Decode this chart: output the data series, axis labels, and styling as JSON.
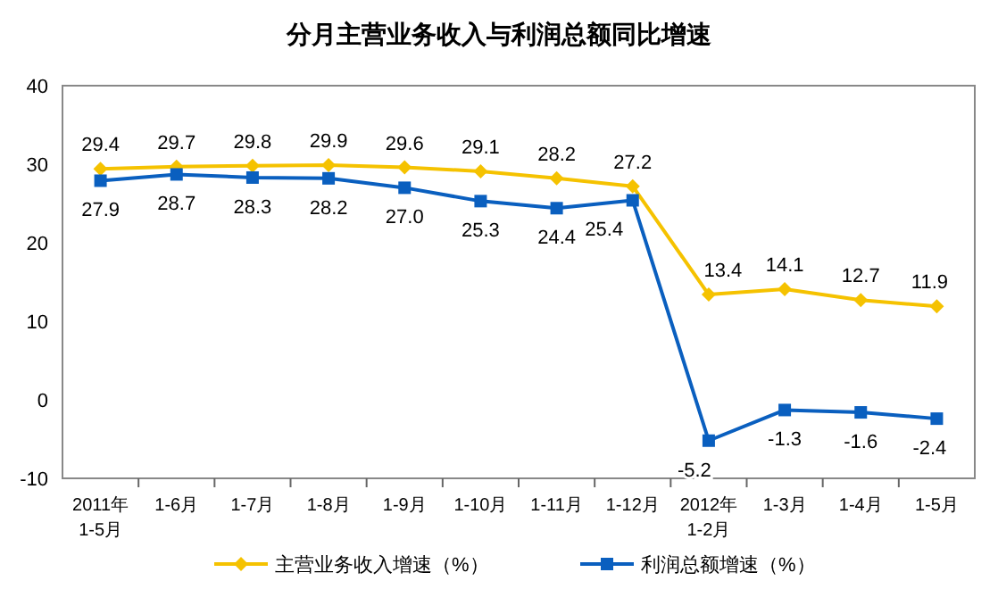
{
  "chart_data": {
    "type": "line",
    "title": "分月主营业务收入与利润总额同比增速",
    "categories": [
      "2011年\n1-5月",
      "1-6月",
      "1-7月",
      "1-8月",
      "1-9月",
      "1-10月",
      "1-11月",
      "1-12月",
      "2012年\n1-2月",
      "1-3月",
      "1-4月",
      "1-5月"
    ],
    "series": [
      {
        "name": "主营业务收入增速（%）",
        "color": "#f5c200",
        "marker": "diamond",
        "values": [
          29.4,
          29.7,
          29.8,
          29.9,
          29.6,
          29.1,
          28.2,
          27.2,
          13.4,
          14.1,
          12.7,
          11.9
        ],
        "value_labels": [
          "29.4",
          "29.7",
          "29.8",
          "29.9",
          "29.6",
          "29.1",
          "28.2",
          "27.2",
          "13.4",
          "14.1",
          "12.7",
          "11.9"
        ]
      },
      {
        "name": "利润总额增速（%）",
        "color": "#0a5fbf",
        "marker": "square",
        "values": [
          27.9,
          28.7,
          28.3,
          28.2,
          27.0,
          25.3,
          24.4,
          25.4,
          -5.2,
          -1.3,
          -1.6,
          -2.4
        ],
        "value_labels": [
          "27.9",
          "28.7",
          "28.3",
          "28.2",
          "27.0",
          "25.3",
          "24.4",
          "25.4",
          "-5.2",
          "-1.3",
          "-1.6",
          "-2.4"
        ]
      }
    ],
    "ylim": [
      -10,
      40
    ],
    "yticks": [
      -10,
      0,
      10,
      20,
      30,
      40
    ],
    "legend": "bottom"
  }
}
